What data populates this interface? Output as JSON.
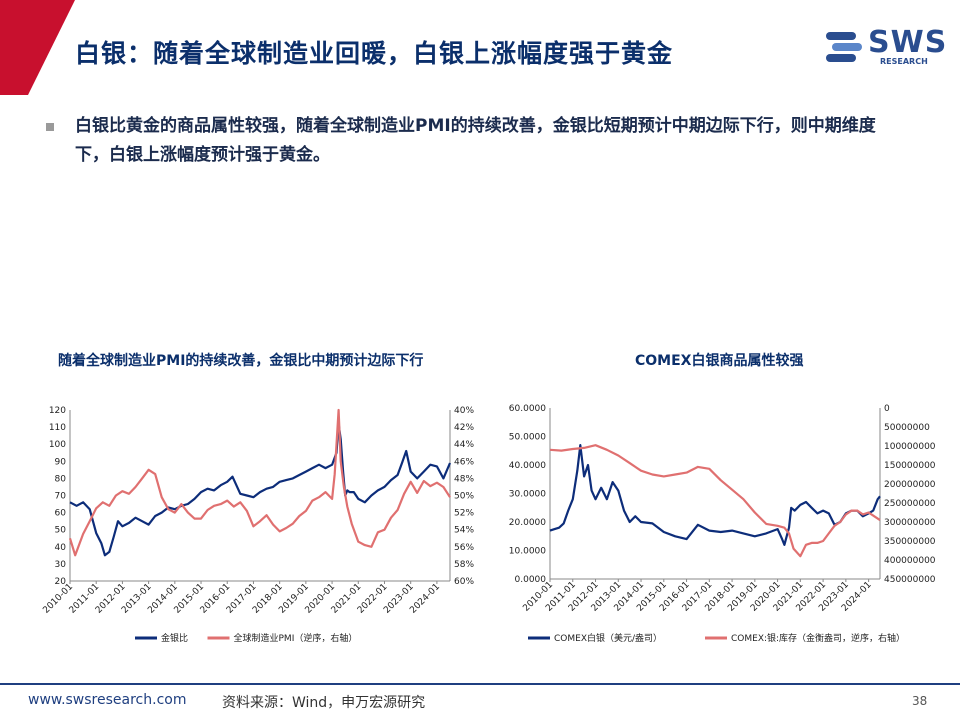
{
  "header": {
    "title": "白银：随着全球制造业回暖，白银上涨幅度强于黄金"
  },
  "logo": {
    "text": "SWS",
    "sub": "RESEARCH",
    "icon": "sws-logo-icon"
  },
  "bullet": {
    "text": "白银比黄金的商品属性较强，随着全球制造业PMI的持续改善，金银比短期预计中期边际下行，则中期维度下，白银上涨幅度预计强于黄金。"
  },
  "footer": {
    "url": "www.swsresearch.com",
    "source": "资料来源：Wind，申万宏源研究",
    "page": "38"
  },
  "colors": {
    "series1": "#0d2d7a",
    "series2": "#e07070",
    "title": "#0b2f6b",
    "accent_red": "#c8102e"
  },
  "chart_data": [
    {
      "type": "line",
      "title": "随着全球制造业PMI的持续改善，金银比中期预计边际下行",
      "x_ticks": [
        "2010-01",
        "2011-01",
        "2012-01",
        "2013-01",
        "2014-01",
        "2015-01",
        "2016-01",
        "2017-01",
        "2018-01",
        "2019-01",
        "2020-01",
        "2021-01",
        "2022-01",
        "2023-01",
        "2024-01"
      ],
      "x_range": [
        2010.0,
        2024.5
      ],
      "left_axis": {
        "min": 20,
        "max": 120,
        "ticks": [
          "20",
          "30",
          "40",
          "50",
          "60",
          "70",
          "80",
          "90",
          "100",
          "110",
          "120"
        ]
      },
      "right_axis": {
        "min": 40,
        "max": 60,
        "reversed": true,
        "ticks": [
          "40%",
          "42%",
          "44%",
          "46%",
          "48%",
          "50%",
          "52%",
          "54%",
          "56%",
          "58%",
          "60%"
        ]
      },
      "series": [
        {
          "name": "金银比",
          "axis": "left",
          "color": "#0d2d7a",
          "x": [
            2010.0,
            2010.25,
            2010.5,
            2010.75,
            2011.0,
            2011.2,
            2011.33,
            2011.5,
            2011.67,
            2011.83,
            2012.0,
            2012.25,
            2012.5,
            2012.75,
            2013.0,
            2013.25,
            2013.5,
            2013.75,
            2014.0,
            2014.25,
            2014.5,
            2014.75,
            2015.0,
            2015.25,
            2015.5,
            2015.75,
            2016.0,
            2016.2,
            2016.5,
            2016.75,
            2017.0,
            2017.25,
            2017.5,
            2017.75,
            2018.0,
            2018.25,
            2018.5,
            2018.75,
            2019.0,
            2019.25,
            2019.5,
            2019.75,
            2020.0,
            2020.17,
            2020.25,
            2020.33,
            2020.42,
            2020.5,
            2020.58,
            2020.67,
            2020.83,
            2021.0,
            2021.25,
            2021.5,
            2021.75,
            2022.0,
            2022.25,
            2022.5,
            2022.67,
            2022.83,
            2023.0,
            2023.25,
            2023.5,
            2023.75,
            2024.0,
            2024.25,
            2024.5
          ],
          "y": [
            66,
            64,
            66,
            62,
            48,
            42,
            35,
            37,
            46,
            55,
            52,
            54,
            57,
            55,
            53,
            58,
            60,
            63,
            62,
            64,
            65,
            68,
            72,
            74,
            73,
            76,
            78,
            81,
            71,
            70,
            69,
            72,
            74,
            75,
            78,
            79,
            80,
            82,
            84,
            86,
            88,
            86,
            88,
            95,
            112,
            103,
            84,
            70,
            73,
            72,
            72,
            68,
            66,
            70,
            73,
            75,
            79,
            82,
            89,
            96,
            84,
            80,
            84,
            88,
            87,
            80,
            89
          ]
        },
        {
          "name": "全球制造业PMI（逆序，右轴）",
          "axis": "right",
          "color": "#e07070",
          "x": [
            2010.0,
            2010.2,
            2010.5,
            2010.75,
            2011.0,
            2011.25,
            2011.5,
            2011.75,
            2012.0,
            2012.25,
            2012.5,
            2012.75,
            2013.0,
            2013.25,
            2013.5,
            2013.75,
            2014.0,
            2014.25,
            2014.5,
            2014.75,
            2015.0,
            2015.25,
            2015.5,
            2015.75,
            2016.0,
            2016.25,
            2016.5,
            2016.75,
            2017.0,
            2017.25,
            2017.5,
            2017.75,
            2018.0,
            2018.25,
            2018.5,
            2018.75,
            2019.0,
            2019.25,
            2019.5,
            2019.75,
            2020.0,
            2020.1,
            2020.25,
            2020.33,
            2020.45,
            2020.58,
            2020.75,
            2021.0,
            2021.25,
            2021.5,
            2021.75,
            2022.0,
            2022.25,
            2022.5,
            2022.75,
            2023.0,
            2023.25,
            2023.5,
            2023.75,
            2024.0,
            2024.25,
            2024.5
          ],
          "y": [
            55,
            57,
            54.5,
            53,
            51.5,
            50.8,
            51.2,
            50,
            49.5,
            49.8,
            49,
            48,
            47,
            47.5,
            50.2,
            51.6,
            52,
            51,
            52,
            52.7,
            52.7,
            51.7,
            51.2,
            51,
            50.6,
            51.3,
            50.8,
            51.8,
            53.6,
            53,
            52.3,
            53.4,
            54.2,
            53.8,
            53.3,
            52.4,
            51.8,
            50.6,
            50.2,
            49.6,
            50.4,
            47.5,
            40,
            46,
            49,
            51.3,
            53.3,
            55.4,
            55.8,
            56,
            54.3,
            54,
            52.6,
            51.7,
            49.8,
            48.4,
            49.7,
            48.3,
            48.9,
            48.5,
            49,
            50.2
          ]
        }
      ],
      "legend": "bottom",
      "grid": false
    },
    {
      "type": "line",
      "title": "COMEX白银商品属性较强",
      "x_ticks": [
        "2010-01",
        "2011-01",
        "2012-01",
        "2013-01",
        "2014-01",
        "2015-01",
        "2016-01",
        "2017-01",
        "2018-01",
        "2019-01",
        "2020-01",
        "2021-01",
        "2022-01",
        "2023-01",
        "2024-01"
      ],
      "x_range": [
        2010.0,
        2024.5
      ],
      "left_axis": {
        "min": 0,
        "max": 60,
        "ticks": [
          "0.0000",
          "10.0000",
          "20.0000",
          "30.0000",
          "40.0000",
          "50.0000",
          "60.0000"
        ]
      },
      "right_axis": {
        "min": 0,
        "max": 450000000,
        "reversed": true,
        "ticks": [
          "0",
          "50000000",
          "100000000",
          "150000000",
          "200000000",
          "250000000",
          "300000000",
          "350000000",
          "400000000",
          "450000000"
        ]
      },
      "series": [
        {
          "name": "COMEX白银（美元/盎司）",
          "axis": "left",
          "color": "#0d2d7a",
          "x": [
            2010.0,
            2010.2,
            2010.4,
            2010.6,
            2010.8,
            2011.0,
            2011.2,
            2011.33,
            2011.5,
            2011.67,
            2011.83,
            2012.0,
            2012.25,
            2012.5,
            2012.75,
            2013.0,
            2013.25,
            2013.5,
            2013.75,
            2014.0,
            2014.5,
            2015.0,
            2015.5,
            2016.0,
            2016.5,
            2017.0,
            2017.5,
            2018.0,
            2018.5,
            2019.0,
            2019.5,
            2020.0,
            2020.2,
            2020.3,
            2020.5,
            2020.6,
            2020.75,
            2021.0,
            2021.25,
            2021.5,
            2021.75,
            2022.0,
            2022.25,
            2022.5,
            2022.75,
            2023.0,
            2023.25,
            2023.5,
            2023.75,
            2024.0,
            2024.2,
            2024.4,
            2024.5
          ],
          "y": [
            17,
            17.5,
            18,
            19.5,
            24,
            28,
            38,
            47,
            36,
            40,
            31,
            28,
            32,
            28,
            34,
            31,
            24,
            20,
            22,
            20,
            19.5,
            16.5,
            15,
            14,
            19,
            17,
            16.5,
            17,
            16,
            15,
            16,
            17.5,
            14,
            12,
            18,
            25,
            24,
            26,
            27,
            25,
            23,
            24,
            23,
            19,
            20,
            23,
            24,
            24,
            22,
            23,
            24,
            28,
            29
          ]
        },
        {
          "name": "COMEX:银:库存（金衡盎司，逆序，右轴）",
          "axis": "right",
          "color": "#e07070",
          "x": [
            2010.0,
            2010.5,
            2011.0,
            2011.5,
            2012.0,
            2012.5,
            2013.0,
            2013.5,
            2014.0,
            2014.5,
            2015.0,
            2015.5,
            2016.0,
            2016.5,
            2017.0,
            2017.5,
            2018.0,
            2018.5,
            2019.0,
            2019.5,
            2020.0,
            2020.3,
            2020.5,
            2020.7,
            2021.0,
            2021.25,
            2021.5,
            2021.75,
            2022.0,
            2022.25,
            2022.5,
            2022.75,
            2023.0,
            2023.25,
            2023.5,
            2023.75,
            2024.0,
            2024.25,
            2024.5
          ],
          "y": [
            110000000,
            112000000,
            108000000,
            105000000,
            98000000,
            110000000,
            125000000,
            145000000,
            165000000,
            175000000,
            180000000,
            175000000,
            170000000,
            155000000,
            160000000,
            190000000,
            215000000,
            240000000,
            275000000,
            305000000,
            310000000,
            315000000,
            330000000,
            370000000,
            390000000,
            360000000,
            355000000,
            355000000,
            350000000,
            330000000,
            310000000,
            300000000,
            280000000,
            270000000,
            270000000,
            280000000,
            275000000,
            285000000,
            295000000
          ]
        }
      ],
      "legend": "bottom",
      "grid": false
    }
  ]
}
